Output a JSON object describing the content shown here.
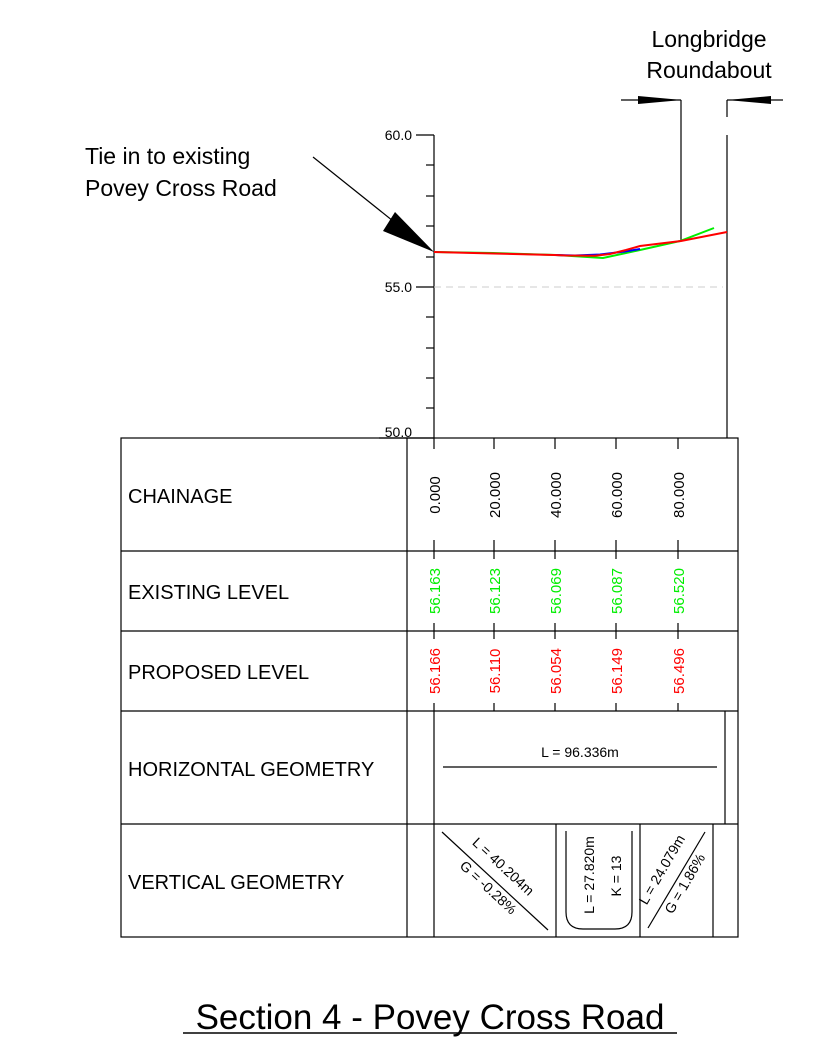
{
  "annotations": {
    "roundabout_line1": "Longbridge",
    "roundabout_line2": "Roundabout",
    "tie_in_line1": "Tie in to existing",
    "tie_in_line2": "Povey Cross Road"
  },
  "axis": {
    "ticks": [
      "60.0",
      "55.0",
      "50.0"
    ]
  },
  "table": {
    "rows": {
      "chainage": "CHAINAGE",
      "existing": "EXISTING LEVEL",
      "proposed": "PROPOSED LEVEL",
      "horizontal": "HORIZONTAL GEOMETRY",
      "vertical": "VERTICAL GEOMETRY"
    },
    "chainages": [
      "0.000",
      "20.000",
      "40.000",
      "60.000",
      "80.000"
    ],
    "existing_levels": [
      "56.163",
      "56.123",
      "56.069",
      "56.087",
      "56.520"
    ],
    "proposed_levels": [
      "56.166",
      "56.110",
      "56.054",
      "56.149",
      "56.496"
    ],
    "horizontal_length": "L = 96.336m",
    "vertical": {
      "grade1_length": "L = 40.204m",
      "grade1_gradient": "G = -0.28%",
      "curve_length": "L = 27.820m",
      "curve_k": "K = 13",
      "grade2_length": "L = 24.079m",
      "grade2_gradient": "G = 1.86%"
    }
  },
  "title": "Section 4 - Povey Cross Road",
  "colors": {
    "existing": "#00ee00",
    "proposed": "#ff0000",
    "vertical_curve": "#0000ff",
    "line": "#000000",
    "datum_dash": "#cccccc"
  }
}
